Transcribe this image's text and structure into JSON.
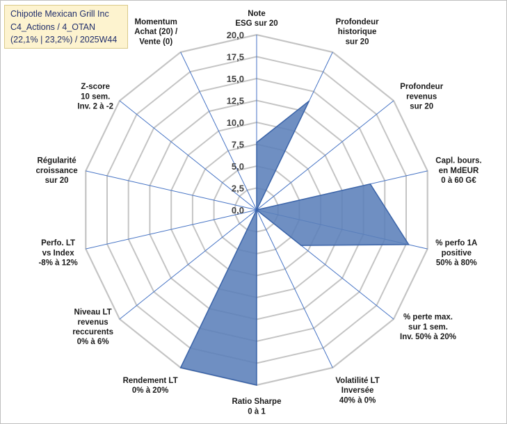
{
  "title_box": {
    "line1": "Chipotle Mexican Grill Inc",
    "line2": "C4_Actions / 4_OTAN",
    "line3": "(22,1% | 23,2%) / 2025W44"
  },
  "colors": {
    "fill": "#5b7fb9",
    "stroke": "#3a63a8",
    "grid": "#c4c4c4",
    "spoke": "#4472c4",
    "title_bg": "#fdf3cf",
    "title_text": "#1f2d6b"
  },
  "chart_data": {
    "type": "radar",
    "scale": {
      "min": 0,
      "max": 20,
      "step": 2.5
    },
    "tick_labels": [
      "0,0",
      "2,5",
      "5,0",
      "7,5",
      "10,0",
      "12,5",
      "15,0",
      "17,5",
      "20,0"
    ],
    "axes": [
      {
        "lines": [
          "Note",
          "ESG sur 20"
        ]
      },
      {
        "lines": [
          "Profondeur",
          "historique",
          "sur 20"
        ]
      },
      {
        "lines": [
          "Profondeur",
          "revenus",
          "sur 20"
        ]
      },
      {
        "lines": [
          "Capl. bours.",
          "en MdEUR",
          "0 à 60 G€"
        ]
      },
      {
        "lines": [
          "% perfo 1A",
          "positive",
          "50% à 80%"
        ]
      },
      {
        "lines": [
          "% perte max.",
          "sur 1 sem.",
          "Inv. 50% à 20%"
        ]
      },
      {
        "lines": [
          "Volatilité LT",
          "Inversée",
          "40% à 0%"
        ]
      },
      {
        "lines": [
          "Ratio Sharpe",
          "0 à 1"
        ]
      },
      {
        "lines": [
          "Rendement LT",
          "0% à 20%"
        ]
      },
      {
        "lines": [
          "Niveau LT",
          "revenus",
          "reccurents",
          "0% à 6%"
        ]
      },
      {
        "lines": [
          "Perfo. LT",
          "vs Index",
          "-8% à 12%"
        ]
      },
      {
        "lines": [
          "Régularité",
          "croissance",
          "sur 20"
        ]
      },
      {
        "lines": [
          "Z-score",
          "10 sem.",
          "Inv. 2 à -2"
        ]
      },
      {
        "lines": [
          "Momentum",
          "Achat (20) /",
          "Vente (0)"
        ]
      }
    ],
    "values": [
      7.7,
      13.8,
      0,
      13.3,
      17.8,
      6.5,
      0,
      20.0,
      20.0,
      0,
      0,
      0,
      0,
      0
    ]
  }
}
